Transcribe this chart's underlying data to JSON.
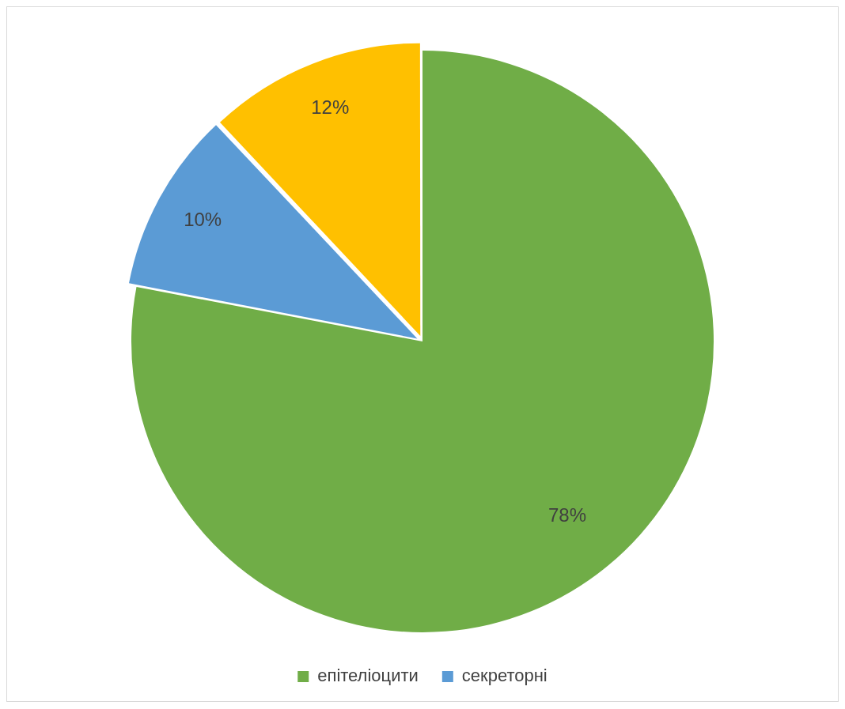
{
  "chart_data": {
    "type": "pie",
    "categories": [
      "епітеліоцити",
      "секреторні",
      null
    ],
    "values": [
      78,
      10,
      12
    ],
    "colors": [
      "#70ad47",
      "#5b9bd5",
      "#ffc000"
    ],
    "value_labels": [
      "78%",
      "10%",
      "12%"
    ],
    "legend": "bottom"
  }
}
